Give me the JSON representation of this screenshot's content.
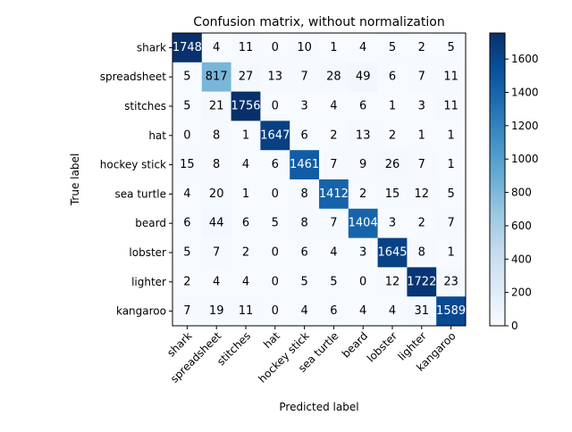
{
  "chart_data": {
    "type": "heatmap",
    "title": "Confusion matrix, without normalization",
    "xlabel": "Predicted label",
    "ylabel": "True label",
    "row_labels": [
      "shark",
      "spreadsheet",
      "stitches",
      "hat",
      "hockey stick",
      "sea turtle",
      "beard",
      "lobster",
      "lighter",
      "kangaroo"
    ],
    "col_labels": [
      "shark",
      "spreadsheet",
      "stitches",
      "hat",
      "hockey stick",
      "sea turtle",
      "beard",
      "lobster",
      "lighter",
      "kangaroo"
    ],
    "values": [
      [
        1748,
        4,
        11,
        0,
        10,
        1,
        4,
        5,
        2,
        5
      ],
      [
        5,
        817,
        27,
        13,
        7,
        28,
        49,
        6,
        7,
        11
      ],
      [
        5,
        21,
        1756,
        0,
        3,
        4,
        6,
        1,
        3,
        11
      ],
      [
        0,
        8,
        1,
        1647,
        6,
        2,
        13,
        2,
        1,
        1
      ],
      [
        15,
        8,
        4,
        6,
        1461,
        7,
        9,
        26,
        7,
        1
      ],
      [
        4,
        20,
        1,
        0,
        8,
        1412,
        2,
        15,
        12,
        5
      ],
      [
        6,
        44,
        6,
        5,
        8,
        7,
        1404,
        3,
        2,
        7
      ],
      [
        5,
        7,
        2,
        0,
        6,
        4,
        3,
        1645,
        8,
        1
      ],
      [
        2,
        4,
        4,
        0,
        5,
        5,
        0,
        12,
        1722,
        23
      ],
      [
        7,
        19,
        11,
        0,
        4,
        6,
        4,
        4,
        31,
        1589
      ]
    ],
    "colormap": "Blues",
    "colormap_stops": [
      "#f7fbff",
      "#deebf7",
      "#c6dbef",
      "#9ecae1",
      "#6baed6",
      "#4292c6",
      "#2171b5",
      "#08519c",
      "#08306b"
    ],
    "colorbar_range": [
      0,
      1756
    ],
    "colorbar_ticks": [
      0,
      200,
      400,
      600,
      800,
      1000,
      1200,
      1400,
      1600
    ],
    "x_tick_rotation": 45,
    "grid": false
  }
}
